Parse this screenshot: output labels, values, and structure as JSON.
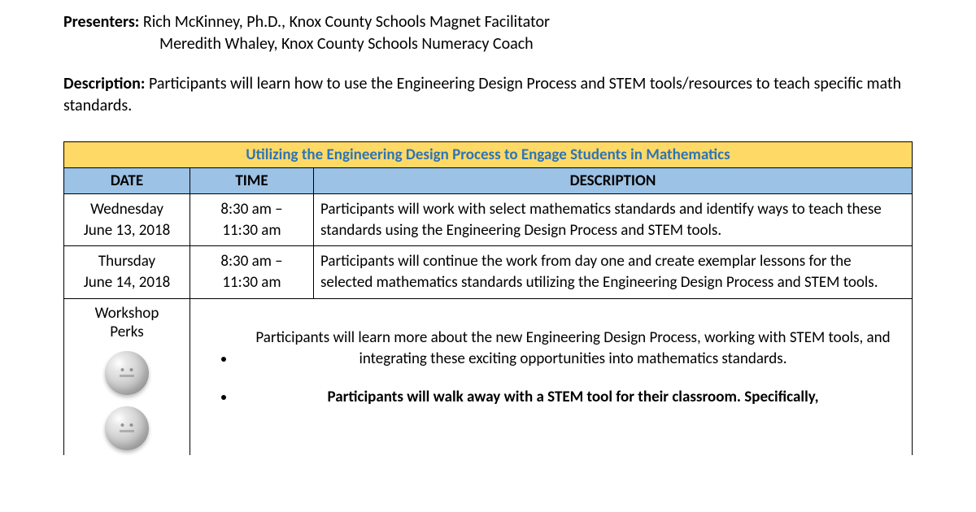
{
  "presenters": {
    "label": "Presenters:",
    "line1": " Rich McKinney, Ph.D., Knox County Schools Magnet Facilitator",
    "line2": "Meredith Whaley, Knox County Schools Numeracy Coach"
  },
  "description": {
    "label": "Description:",
    "text": " Participants will learn how to use the Engineering Design Process and STEM tools/resources to teach specific math standards."
  },
  "table": {
    "title": "Utilizing the Engineering Design Process to Engage Students in Mathematics",
    "headers": {
      "date": "DATE",
      "time": "TIME",
      "description": "DESCRIPTION"
    },
    "rows": [
      {
        "date_line1": "Wednesday",
        "date_line2": "June 13, 2018",
        "time_line1": "8:30 am –",
        "time_line2": "11:30 am",
        "desc": "Participants will work with select mathematics standards and identify ways to teach these standards using the Engineering Design Process and STEM tools."
      },
      {
        "date_line1": "Thursday",
        "date_line2": "June 14, 2018",
        "time_line1": "8:30 am –",
        "time_line2": "11:30 am",
        "desc": "Participants will continue the work from day one and create exemplar lessons for the selected mathematics standards utilizing the Engineering Design Process and STEM tools."
      }
    ],
    "perks": {
      "label_line1": "Workshop",
      "label_line2": "Perks",
      "items": [
        "Participants will learn more about the new Engineering Design Process, working with STEM tools, and integrating these exciting opportunities into mathematics standards.",
        "Participants will walk away with a STEM tool for their classroom. Specifically,"
      ]
    }
  },
  "colors": {
    "title_bg": "#ffd966",
    "title_fg": "#2e74b5",
    "header_bg": "#9cc2e5",
    "border": "#000000",
    "text": "#000000",
    "background": "#ffffff"
  }
}
